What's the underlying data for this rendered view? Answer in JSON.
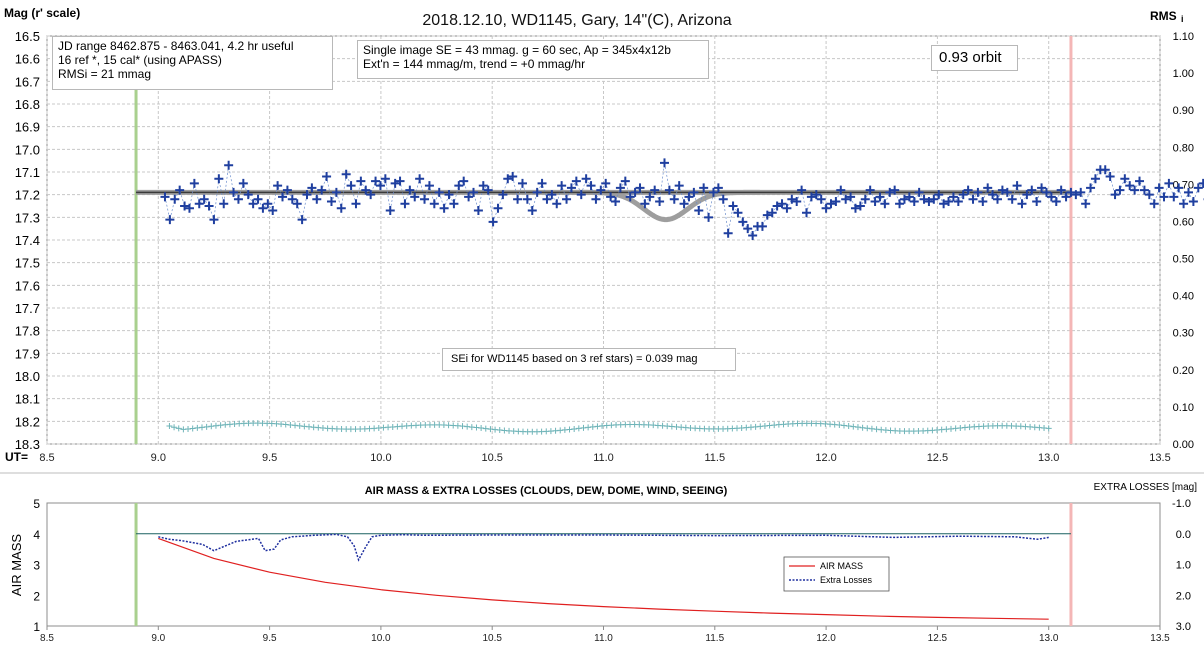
{
  "chart_data": [
    {
      "type": "scatter",
      "title": "2018.12.10, WD1145, Gary, 14\"(C), Arizona",
      "ylabel_left": "Mag (r' scale)",
      "ylabel_right": "RMS",
      "ylabel_right_sub": "i",
      "xlabel": "UT=",
      "xlim": [
        8.5,
        13.5
      ],
      "ylim_left": [
        16.5,
        18.3
      ],
      "ylim_right": [
        0.0,
        1.1
      ],
      "left_axis_inverted": true,
      "grid": true,
      "x_ticks": [
        "8.5",
        "9.0",
        "9.5",
        "10.0",
        "10.5",
        "11.0",
        "11.5",
        "12.0",
        "12.5",
        "13.0",
        "13.5"
      ],
      "y_ticks_left": [
        "16.5",
        "16.6",
        "16.7",
        "16.8",
        "16.9",
        "17.0",
        "17.1",
        "17.2",
        "17.3",
        "17.4",
        "17.5",
        "17.6",
        "17.7",
        "17.8",
        "17.9",
        "18.0",
        "18.1",
        "18.2",
        "18.3"
      ],
      "y_ticks_right": [
        "1.10",
        "1.00",
        "0.90",
        "0.80",
        "0.70",
        "0.60",
        "0.50",
        "0.40",
        "0.30",
        "0.20",
        "0.10",
        "0.00"
      ],
      "annotations": {
        "jd_box": [
          "JD range 8462.875 - 8463.041, 4.2 hr useful",
          "16 ref *, 15 cal* (using APASS)",
          "RMSi = 21 mmag"
        ],
        "se_box": [
          "Single image SE = 43 mmag.  g = 60 sec, Ap = 345x4x12b",
          "Ext'n = 144 mmag/m, trend = +0 mmag/hr"
        ],
        "orbit_box": "0.93 orbit",
        "sei_box": "SEi for WD1145 based on 3 ref stars) = 0.039 mag"
      },
      "vertical_markers": {
        "start_ut": 8.9,
        "end_ut": 13.1,
        "start_color": "#a9d08e",
        "end_color": "#f4b6b6"
      },
      "series": [
        {
          "role": "magnitudes",
          "color": "#1f3f9f",
          "marker": "plus",
          "x_start": 9.03,
          "x_step": 0.022,
          "values": [
            17.21,
            17.31,
            17.22,
            17.18,
            17.25,
            17.26,
            17.15,
            17.24,
            17.22,
            17.25,
            17.31,
            17.13,
            17.24,
            17.07,
            17.19,
            17.22,
            17.15,
            17.2,
            17.24,
            17.22,
            17.26,
            17.24,
            17.27,
            17.16,
            17.21,
            17.18,
            17.22,
            17.24,
            17.31,
            17.2,
            17.17,
            17.22,
            17.18,
            17.12,
            17.23,
            17.19,
            17.26,
            17.11,
            17.16,
            17.24,
            17.14,
            17.18,
            17.2,
            17.14,
            17.16,
            17.13,
            17.27,
            17.15,
            17.14,
            17.24,
            17.18,
            17.21,
            17.13,
            17.22,
            17.16,
            17.24,
            17.19,
            17.26,
            17.2,
            17.24,
            17.16,
            17.14,
            17.21,
            17.19,
            17.27,
            17.16,
            17.18,
            17.32,
            17.26,
            17.2,
            17.13,
            17.12,
            17.22,
            17.15,
            17.22,
            17.27,
            17.19,
            17.15,
            17.22,
            17.2,
            17.24,
            17.16,
            17.22,
            17.17,
            17.14,
            17.2,
            17.13,
            17.16,
            17.22,
            17.18,
            17.15,
            17.21,
            17.23,
            17.17,
            17.14,
            17.21,
            17.19,
            17.17,
            17.24,
            17.21,
            17.18,
            17.23,
            17.06,
            17.18,
            17.22,
            17.16,
            17.24,
            17.21,
            17.19,
            17.27,
            17.17,
            17.3,
            17.19,
            17.17,
            17.22,
            17.37,
            17.25,
            17.28,
            17.32,
            17.35,
            17.38,
            17.34,
            17.34,
            17.29,
            17.28,
            17.25,
            17.24,
            17.26,
            17.22,
            17.23,
            17.18,
            17.28,
            17.21,
            17.2,
            17.22,
            17.26,
            17.24,
            17.23,
            17.18,
            17.22,
            17.21,
            17.26,
            17.25,
            17.22,
            17.18,
            17.23,
            17.21,
            17.24,
            17.19,
            17.18,
            17.24,
            17.22,
            17.21,
            17.23,
            17.19,
            17.22,
            17.23,
            17.22,
            17.2,
            17.24,
            17.23,
            17.21,
            17.23,
            17.2,
            17.18,
            17.22,
            17.19,
            17.23,
            17.17,
            17.2,
            17.22,
            17.18,
            17.19,
            17.22,
            17.16,
            17.24,
            17.2,
            17.18,
            17.23,
            17.17,
            17.19,
            17.21,
            17.23,
            17.18,
            17.21,
            17.19,
            17.2,
            17.19,
            17.24,
            17.17,
            17.13,
            17.09,
            17.09,
            17.12,
            17.2,
            17.18,
            17.13,
            17.16,
            17.18,
            17.14,
            17.18,
            17.2,
            17.24,
            17.17,
            17.21,
            17.15,
            17.21,
            17.17,
            17.24,
            17.19,
            17.23,
            17.17,
            17.15,
            17.22,
            17.24
          ]
        },
        {
          "role": "model fit",
          "color": "#9e9e9e",
          "baseline": 17.19,
          "dip": {
            "center_ut": 11.28,
            "depth_mag": 0.12,
            "width_ut": 0.14
          }
        },
        {
          "role": "reference line",
          "color": "#3a3a3a",
          "value": 17.19,
          "x_range": [
            8.9,
            13.1
          ]
        },
        {
          "role": "RMSi",
          "color": "#6fb4b8",
          "marker": "plus",
          "x_start": 9.05,
          "x_end": 13.0,
          "n_points": 190,
          "axis": "right",
          "baseline": 0.045,
          "wave_amplitude": 0.008
        }
      ]
    },
    {
      "type": "line",
      "title": "AIR MASS & EXTRA LOSSES (CLOUDS, DEW, DOME, WIND, SEEING)",
      "ylabel_left": "AIR MASS",
      "ylabel_right": "EXTRA LOSSES [mag]",
      "xlim": [
        8.5,
        13.5
      ],
      "ylim_left": [
        1,
        5
      ],
      "ylim_right": [
        -1.0,
        3.0
      ],
      "right_axis_inverted": true,
      "x_ticks": [
        "8.5",
        "9.0",
        "9.5",
        "10.0",
        "10.5",
        "11.0",
        "11.5",
        "12.0",
        "12.5",
        "13.0",
        "13.5"
      ],
      "y_ticks_left": [
        "5",
        "4",
        "3",
        "2",
        "1"
      ],
      "y_ticks_right": [
        "-1.0",
        "0.0",
        "1.0",
        "2.0",
        "3.0"
      ],
      "legend": {
        "placement": "lower-center-right",
        "entries": [
          "AIR MASS",
          "Extra Losses"
        ]
      },
      "vertical_markers": {
        "start_ut": 8.9,
        "end_ut": 13.1,
        "start_color": "#a9d08e",
        "end_color": "#f4b6b6"
      },
      "series": [
        {
          "name": "AIR MASS",
          "color": "#e02020",
          "x": [
            9.0,
            9.25,
            9.5,
            9.75,
            10.0,
            10.25,
            10.5,
            10.75,
            11.0,
            11.25,
            11.5,
            11.75,
            12.0,
            12.25,
            12.5,
            12.75,
            13.0
          ],
          "values": [
            3.85,
            3.2,
            2.75,
            2.42,
            2.18,
            2.0,
            1.85,
            1.73,
            1.63,
            1.55,
            1.48,
            1.42,
            1.37,
            1.32,
            1.28,
            1.25,
            1.22
          ]
        },
        {
          "name": "Extra Losses",
          "color": "#1f2f9f",
          "x": [
            9.0,
            9.05,
            9.1,
            9.15,
            9.2,
            9.25,
            9.3,
            9.35,
            9.4,
            9.45,
            9.48,
            9.52,
            9.55,
            9.6,
            9.7,
            9.8,
            9.85,
            9.88,
            9.9,
            9.93,
            9.96,
            10.0,
            10.1,
            10.2,
            10.5,
            11.0,
            11.5,
            12.0,
            12.3,
            12.6,
            12.85,
            12.95,
            13.0
          ],
          "values": [
            0.1,
            0.18,
            0.22,
            0.28,
            0.35,
            0.55,
            0.4,
            0.25,
            0.2,
            0.15,
            0.55,
            0.5,
            0.2,
            0.1,
            0.05,
            0.02,
            0.1,
            0.4,
            0.85,
            0.45,
            0.1,
            0.05,
            0.03,
            0.05,
            0.04,
            0.04,
            0.06,
            0.05,
            0.12,
            0.08,
            0.1,
            0.18,
            0.12
          ]
        },
        {
          "role": "zero-loss reference",
          "color": "#1a6060",
          "value": 0.0,
          "axis": "right"
        }
      ]
    }
  ]
}
